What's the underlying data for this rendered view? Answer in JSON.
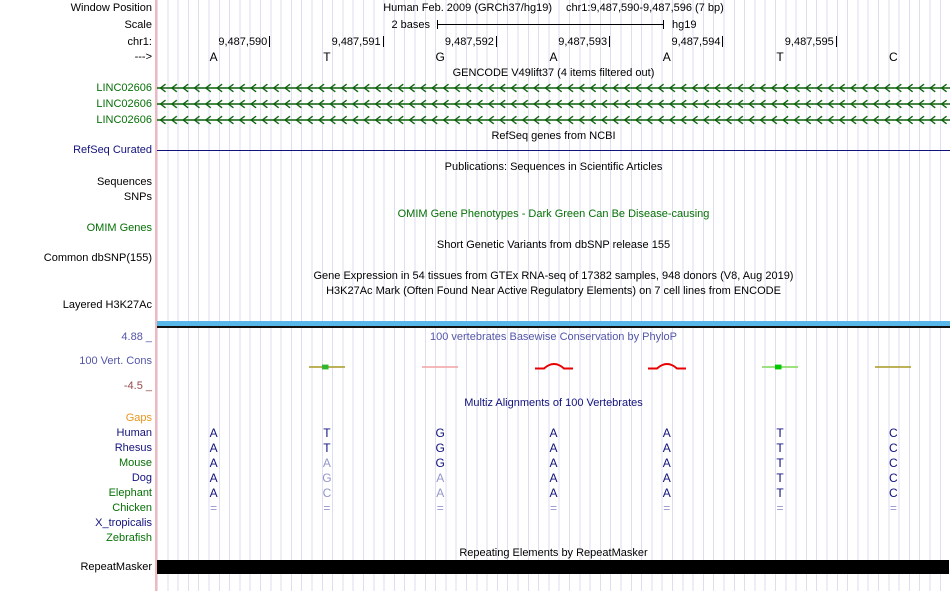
{
  "header": {
    "window_position_label": "Window Position",
    "assembly_title": "Human Feb. 2009 (GRCh37/hg19)",
    "position_title": "chr1:9,487,590-9,487,596 (7 bp)",
    "scale_label": "Scale",
    "scale_value": "2 bases",
    "scale_genome": "hg19",
    "chrom_label": "chr1:",
    "strand_label": "--->",
    "coordinates": [
      "9,487,590",
      "9,487,591",
      "9,487,592",
      "9,487,593",
      "9,487,594",
      "9,487,595"
    ],
    "bases": [
      "A",
      "T",
      "G",
      "A",
      "A",
      "T",
      "C"
    ]
  },
  "tracks": {
    "gencode": {
      "title": "GENCODE V49lift37 (4 items filtered out)",
      "genes": [
        {
          "name": "LINC02606",
          "strand": "-"
        },
        {
          "name": "LINC02606",
          "strand": "-"
        },
        {
          "name": "LINC02606",
          "strand": "-"
        }
      ],
      "color": "#067006"
    },
    "refseq": {
      "title": "RefSeq genes from NCBI",
      "label": "RefSeq Curated",
      "color": "#12127e"
    },
    "publications": {
      "title": "Publications: Sequences in Scientific Articles",
      "label_sequences": "Sequences",
      "label_snps": "SNPs"
    },
    "omim": {
      "title": "OMIM Gene Phenotypes - Dark Green Can Be Disease-causing",
      "label": "OMIM Genes",
      "color": "#067006"
    },
    "dbsnp": {
      "title": "Short Genetic Variants from dbSNP release 155",
      "label": "Common dbSNP(155)"
    },
    "gtex": {
      "title": "Gene Expression in 54 tissues from GTEx RNA-seq of 17382 samples, 948 donors (V8, Aug 2019)"
    },
    "h3k27ac": {
      "title": "H3K27Ac Mark (Often Found Near Active Regulatory Elements) on 7 cell lines from ENCODE",
      "label": "Layered H3K27Ac",
      "bar_color": "#56b7e8"
    },
    "phylop": {
      "title": "100 vertebrates Basewise Conservation by PhyloP",
      "label": "100 Vert. Cons",
      "max_label": "4.88 _",
      "min_label": "-4.5 _",
      "marks": [
        {
          "base_index": 1,
          "shape": "line",
          "color": "olive",
          "dot": "green"
        },
        {
          "base_index": 2,
          "shape": "line",
          "color": "pink"
        },
        {
          "base_index": 3,
          "shape": "arch",
          "color": "red"
        },
        {
          "base_index": 4,
          "shape": "arch",
          "color": "red"
        },
        {
          "base_index": 5,
          "shape": "line",
          "color": "green",
          "dot": "bright-green"
        },
        {
          "base_index": 6,
          "shape": "line",
          "color": "olive"
        }
      ]
    },
    "repeatmasker": {
      "title": "Repeating Elements by RepeatMasker",
      "label": "RepeatMasker",
      "bar_color": "#000000"
    }
  },
  "alignment": {
    "title": "Multiz Alignments of 100 Vertebrates",
    "rows": [
      {
        "id": "gaps",
        "label": "Gaps",
        "label_color": "orange",
        "cells": [
          "",
          "",
          "",
          "",
          "",
          "",
          ""
        ],
        "match": [
          0,
          0,
          0,
          0,
          0,
          0,
          0
        ]
      },
      {
        "id": "human",
        "label": "Human",
        "label_color": "navy",
        "cells": [
          "A",
          "T",
          "G",
          "A",
          "A",
          "T",
          "C"
        ],
        "match": [
          1,
          1,
          1,
          1,
          1,
          1,
          1
        ]
      },
      {
        "id": "rhesus",
        "label": "Rhesus",
        "label_color": "navy",
        "cells": [
          "A",
          "T",
          "G",
          "A",
          "A",
          "T",
          "C"
        ],
        "match": [
          1,
          1,
          1,
          1,
          1,
          1,
          1
        ]
      },
      {
        "id": "mouse",
        "label": "Mouse",
        "label_color": "green",
        "cells": [
          "A",
          "A",
          "G",
          "A",
          "A",
          "T",
          "C"
        ],
        "match": [
          1,
          0,
          1,
          1,
          1,
          1,
          1
        ]
      },
      {
        "id": "dog",
        "label": "Dog",
        "label_color": "navy",
        "cells": [
          "A",
          "G",
          "A",
          "A",
          "A",
          "T",
          "C"
        ],
        "match": [
          1,
          0,
          0,
          1,
          1,
          1,
          1
        ]
      },
      {
        "id": "elephant",
        "label": "Elephant",
        "label_color": "green",
        "cells": [
          "A",
          "C",
          "A",
          "A",
          "A",
          "T",
          "C"
        ],
        "match": [
          1,
          0,
          0,
          1,
          1,
          1,
          1
        ]
      },
      {
        "id": "chicken",
        "label": "Chicken",
        "label_color": "green",
        "cells": [
          "=",
          "=",
          "=",
          "=",
          "=",
          "=",
          "="
        ],
        "match": [
          0,
          0,
          0,
          0,
          0,
          0,
          0
        ]
      },
      {
        "id": "x_tropicalis",
        "label": "X_tropicalis",
        "label_color": "navy",
        "cells": [
          "",
          "",
          "",
          "",
          "",
          "",
          ""
        ],
        "match": [
          0,
          0,
          0,
          0,
          0,
          0,
          0
        ]
      },
      {
        "id": "zebrafish",
        "label": "Zebrafish",
        "label_color": "green",
        "cells": [
          "",
          "",
          "",
          "",
          "",
          "",
          ""
        ],
        "match": [
          0,
          0,
          0,
          0,
          0,
          0,
          0
        ]
      }
    ]
  }
}
